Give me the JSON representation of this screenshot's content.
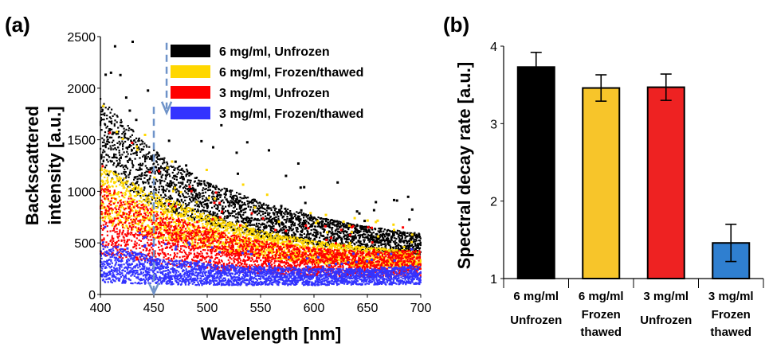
{
  "panel_a_label": "(a)",
  "panel_b_label": "(b)",
  "chart_data": [
    {
      "type": "scatter",
      "panel": "(a)",
      "xlabel": "Wavelength [nm]",
      "ylabel_lines": [
        "Backscattered",
        "intensity  [a.u.]"
      ],
      "xlim": [
        400,
        700
      ],
      "ylim": [
        0,
        2500
      ],
      "x_ticks": [
        400,
        450,
        500,
        550,
        600,
        650,
        700
      ],
      "y_ticks": [
        0,
        500,
        1000,
        1500,
        2000,
        2500
      ],
      "legend_position": "top-right",
      "annotation": "dashed arrow at 450 nm pointing downward (decreasing intensity)",
      "series": [
        {
          "name": "6 mg/ml, Unfrozen",
          "color": "#000000",
          "band_low": [
            [
              400,
              1200
            ],
            [
              450,
              850
            ],
            [
              500,
              680
            ],
            [
              550,
              560
            ],
            [
              600,
              480
            ],
            [
              650,
              420
            ],
            [
              700,
              380
            ]
          ],
          "band_high": [
            [
              400,
              1900
            ],
            [
              450,
              1400
            ],
            [
              500,
              1100
            ],
            [
              550,
              900
            ],
            [
              600,
              760
            ],
            [
              650,
              660
            ],
            [
              700,
              590
            ]
          ]
        },
        {
          "name": "6 mg/ml, Frozen/thawed",
          "color": "#FFD700",
          "band_low": [
            [
              400,
              700
            ],
            [
              450,
              550
            ],
            [
              500,
              440
            ],
            [
              550,
              360
            ],
            [
              600,
              300
            ],
            [
              650,
              270
            ],
            [
              700,
              250
            ]
          ],
          "band_high": [
            [
              400,
              1250
            ],
            [
              450,
              980
            ],
            [
              500,
              780
            ],
            [
              550,
              620
            ],
            [
              600,
              520
            ],
            [
              650,
              460
            ],
            [
              700,
              420
            ]
          ]
        },
        {
          "name": "3 mg/ml, Unfrozen",
          "color": "#FF0000",
          "band_low": [
            [
              400,
              380
            ],
            [
              450,
              300
            ],
            [
              500,
              240
            ],
            [
              550,
              200
            ],
            [
              600,
              180
            ],
            [
              650,
              170
            ],
            [
              700,
              170
            ]
          ],
          "band_high": [
            [
              400,
              1100
            ],
            [
              450,
              820
            ],
            [
              500,
              640
            ],
            [
              550,
              520
            ],
            [
              600,
              450
            ],
            [
              650,
              420
            ],
            [
              700,
              430
            ]
          ]
        },
        {
          "name": "3 mg/ml, Frozen/thawed",
          "color": "#3333FF",
          "band_low": [
            [
              400,
              120
            ],
            [
              450,
              100
            ],
            [
              500,
              90
            ],
            [
              550,
              90
            ],
            [
              600,
              90
            ],
            [
              650,
              95
            ],
            [
              700,
              100
            ]
          ],
          "band_high": [
            [
              400,
              520
            ],
            [
              450,
              360
            ],
            [
              500,
              300
            ],
            [
              550,
              270
            ],
            [
              600,
              250
            ],
            [
              650,
              250
            ],
            [
              700,
              280
            ]
          ]
        }
      ]
    },
    {
      "type": "bar",
      "panel": "(b)",
      "ylabel": "Spectral decay rate  [a.u.]",
      "ylim": [
        1,
        4
      ],
      "y_ticks": [
        1,
        2,
        3,
        4
      ],
      "categories": [
        [
          "6 mg/ml",
          "Unfrozen"
        ],
        [
          "6 mg/ml",
          "Frozen",
          "thawed"
        ],
        [
          "3 mg/ml",
          "Unfrozen"
        ],
        [
          "3 mg/ml",
          "Frozen",
          "thawed"
        ]
      ],
      "values": [
        3.73,
        3.46,
        3.47,
        1.46
      ],
      "errors": [
        0.19,
        0.17,
        0.17,
        0.24
      ],
      "colors": [
        "#000000",
        "#F7C52A",
        "#EE2222",
        "#2F7FD0"
      ]
    }
  ]
}
